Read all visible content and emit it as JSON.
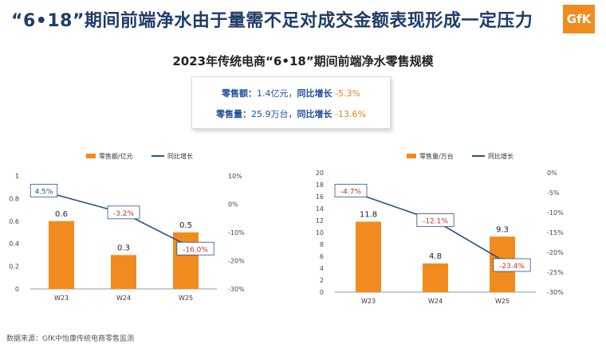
{
  "page": {
    "title": "“6•18”期间前端净水由于量需不足对成交金额表现形成一定压力",
    "logo": "GfK",
    "subtitle": "2023年传统电商“6•18”期间前端净水零售规模",
    "footer": "数据来源：GfK中怡康传统电商零售监测"
  },
  "summary": {
    "line1_label": "零售额：",
    "line1_value": "1.4亿元，",
    "line1_growth_label": "同比增长",
    "line1_growth": " -5.3%",
    "line2_label": "零售量：",
    "line2_value": "25.9万台，",
    "line2_growth_label": "同比增长",
    "line2_growth": " -13.6%"
  },
  "colors": {
    "bar": "#f28b1e",
    "line": "#2e4f8a",
    "label_red": "#c0392b",
    "axis": "#444444"
  },
  "chart_data": [
    {
      "type": "bar",
      "categories": [
        "W23",
        "W24",
        "W25"
      ],
      "series": [
        {
          "name": "零售额/亿元",
          "kind": "bar",
          "values": [
            0.6,
            0.3,
            0.5
          ],
          "labels": [
            "0.6",
            "0.3",
            "0.5"
          ]
        },
        {
          "name": "同比增长",
          "kind": "line",
          "axis": "right",
          "values": [
            4.5,
            -3.2,
            -16.0
          ],
          "labels": [
            "4.5%",
            "-3.2%",
            "-16.0%"
          ]
        }
      ],
      "ylim": [
        0,
        1
      ],
      "yticks": [
        "0",
        "0.2",
        "0.4",
        "0.6",
        "0.8",
        "1"
      ],
      "y2lim": [
        -30,
        10
      ],
      "y2ticks": [
        "10%",
        "0%",
        "-10%",
        "-20%",
        "-30%"
      ],
      "legend": "top"
    },
    {
      "type": "bar",
      "categories": [
        "W23",
        "W24",
        "W25"
      ],
      "series": [
        {
          "name": "零售量/万台",
          "kind": "bar",
          "values": [
            11.8,
            4.8,
            9.3
          ],
          "labels": [
            "11.8",
            "4.8",
            "9.3"
          ]
        },
        {
          "name": "同比增长",
          "kind": "line",
          "axis": "right",
          "values": [
            -4.7,
            -12.1,
            -23.4
          ],
          "labels": [
            "-4.7%",
            "-12.1%",
            "-23.4%"
          ]
        }
      ],
      "ylim": [
        0,
        20
      ],
      "yticks": [
        "0",
        "2",
        "4",
        "6",
        "8",
        "10",
        "12",
        "14",
        "16",
        "18",
        "20"
      ],
      "y2lim": [
        -30,
        0
      ],
      "y2ticks": [
        "0%",
        "-5%",
        "-10%",
        "-15%",
        "-20%",
        "-25%",
        "-30%"
      ],
      "legend": "top"
    }
  ]
}
